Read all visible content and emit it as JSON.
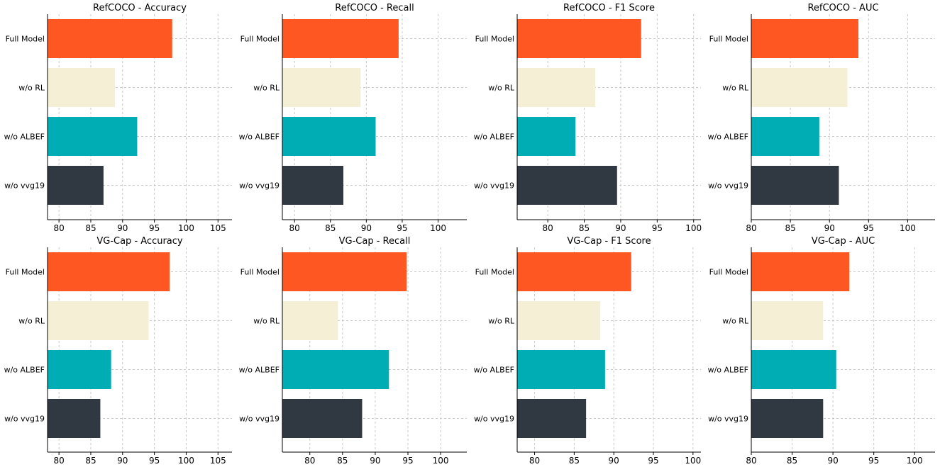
{
  "colors": {
    "Full Model": "#ff5722",
    "w/o RL": "#f5efd6",
    "w/o ALBEF": "#00adb5",
    "w/o vvg19": "#303841"
  },
  "chart_data": [
    {
      "type": "bar",
      "orientation": "horizontal",
      "title": "RefCOCO - Accuracy",
      "categories": [
        "Full Model",
        "w/o RL",
        "w/o ALBEF",
        "w/o vvg19"
      ],
      "values": [
        97.8,
        88.8,
        92.3,
        87.0
      ],
      "xlim": [
        78.2,
        107.2
      ],
      "xticks": [
        80,
        85,
        90,
        95,
        100,
        105
      ]
    },
    {
      "type": "bar",
      "orientation": "horizontal",
      "title": "RefCOCO - Recall",
      "categories": [
        "Full Model",
        "w/o RL",
        "w/o ALBEF",
        "w/o vvg19"
      ],
      "values": [
        94.5,
        89.2,
        91.3,
        86.8
      ],
      "xlim": [
        78.3,
        104.0
      ],
      "xticks": [
        80,
        85,
        90,
        95,
        100
      ]
    },
    {
      "type": "bar",
      "orientation": "horizontal",
      "title": "RefCOCO - F1 Score",
      "categories": [
        "Full Model",
        "w/o RL",
        "w/o ALBEF",
        "w/o vvg19"
      ],
      "values": [
        92.8,
        86.5,
        83.8,
        89.5
      ],
      "xlim": [
        75.8,
        101.0
      ],
      "xticks": [
        80,
        85,
        90,
        95,
        100
      ]
    },
    {
      "type": "bar",
      "orientation": "horizontal",
      "title": "RefCOCO - AUC",
      "categories": [
        "Full Model",
        "w/o RL",
        "w/o ALBEF",
        "w/o vvg19"
      ],
      "values": [
        93.7,
        92.3,
        88.7,
        91.2
      ],
      "xlim": [
        80.0,
        103.5
      ],
      "xticks": [
        80,
        85,
        90,
        95,
        100
      ]
    },
    {
      "type": "bar",
      "orientation": "horizontal",
      "title": "VG-Cap - Accuracy",
      "categories": [
        "Full Model",
        "w/o RL",
        "w/o ALBEF",
        "w/o vvg19"
      ],
      "values": [
        97.4,
        94.1,
        88.2,
        86.5
      ],
      "xlim": [
        78.2,
        107.2
      ],
      "xticks": [
        80,
        85,
        90,
        95,
        100,
        105
      ]
    },
    {
      "type": "bar",
      "orientation": "horizontal",
      "title": "VG-Cap - Recall",
      "categories": [
        "Full Model",
        "w/o RL",
        "w/o ALBEF",
        "w/o vvg19"
      ],
      "values": [
        94.8,
        84.3,
        92.1,
        88.0
      ],
      "xlim": [
        75.8,
        104.0
      ],
      "xticks": [
        80,
        85,
        90,
        95,
        100
      ]
    },
    {
      "type": "bar",
      "orientation": "horizontal",
      "title": "VG-Cap - F1 Score",
      "categories": [
        "Full Model",
        "w/o RL",
        "w/o ALBEF",
        "w/o vvg19"
      ],
      "values": [
        92.2,
        88.3,
        88.9,
        86.5
      ],
      "xlim": [
        77.8,
        101.0
      ],
      "xticks": [
        80,
        85,
        90,
        95,
        100
      ]
    },
    {
      "type": "bar",
      "orientation": "horizontal",
      "title": "VG-Cap - AUC",
      "categories": [
        "Full Model",
        "w/o RL",
        "w/o ALBEF",
        "w/o vvg19"
      ],
      "values": [
        92.0,
        88.8,
        90.4,
        88.8
      ],
      "xlim": [
        80.0,
        102.5
      ],
      "xticks": [
        80,
        85,
        90,
        95,
        100
      ]
    }
  ]
}
